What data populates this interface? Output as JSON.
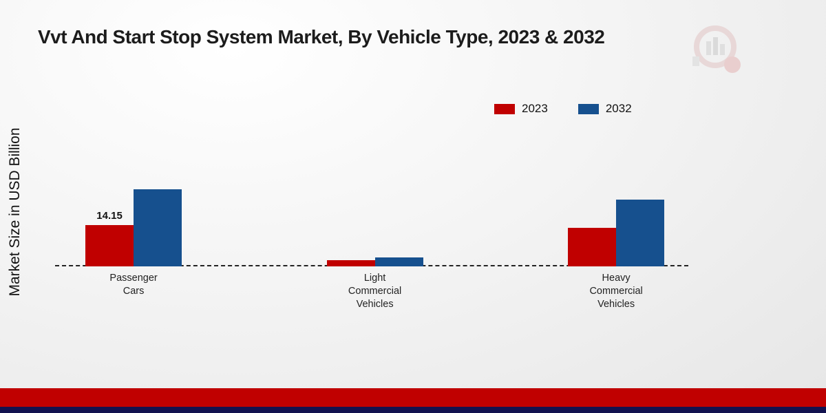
{
  "title": "Vvt And Start Stop System Market, By Vehicle Type, 2023 & 2032",
  "ylabel": "Market Size in USD Billion",
  "chart_data": {
    "type": "bar",
    "title": "Vvt And Start Stop System Market, By Vehicle Type, 2023 & 2032",
    "xlabel": "",
    "ylabel": "Market Size in USD Billion",
    "categories": [
      "Passenger Cars",
      "Light Commercial Vehicles",
      "Heavy Commercial Vehicles"
    ],
    "series": [
      {
        "name": "2023",
        "color": "#c00000",
        "values": [
          14.15,
          2.1,
          13.2
        ]
      },
      {
        "name": "2032",
        "color": "#16508e",
        "values": [
          26.5,
          3.1,
          22.9
        ]
      }
    ],
    "data_label": {
      "text": "14.15",
      "series_index": 0,
      "category_index": 0
    },
    "ylim": [
      0,
      45
    ],
    "grid": false,
    "baseline_style": "dashed",
    "legend_position": "top-right"
  },
  "footer": {
    "band_color": "#c00000",
    "strip_color": "#12124f"
  }
}
